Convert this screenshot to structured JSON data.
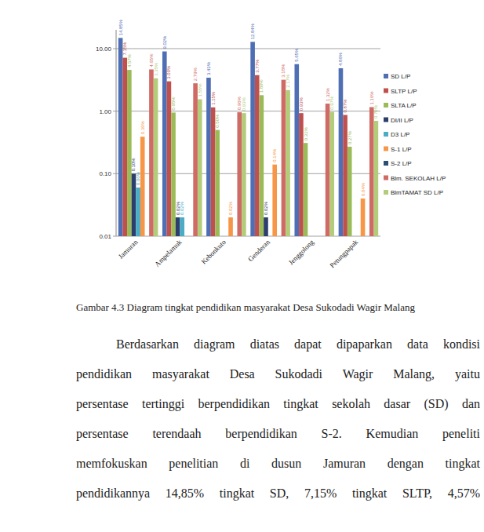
{
  "chart_data": {
    "type": "bar",
    "log": "y",
    "grid": true,
    "legend": "right",
    "data_labels": true,
    "categories": [
      "Jamuran",
      "Ampelamuk",
      "Kebonkuto",
      "Genderan",
      "Jenggolong",
      "Petungpapak"
    ],
    "ylim": [
      0.01,
      20
    ],
    "yticks": [
      {
        "value": 0.01,
        "label": "0.01"
      },
      {
        "value": 0.1,
        "label": "0.10"
      },
      {
        "value": 1,
        "label": "1.00"
      },
      {
        "value": 10,
        "label": "10.00"
      }
    ],
    "series": [
      {
        "name": "SD L/P",
        "color": "#4f6fb5",
        "values": [
          14.85,
          9.02,
          3.43,
          12.84,
          5.65,
          4.86
        ],
        "value_labels": [
          "14.85%",
          "9.02%",
          "3.43%",
          "12.84%",
          "5.65%",
          "4.86%"
        ]
      },
      {
        "name": "SLTP L/P",
        "color": "#c0504d",
        "values": [
          7.15,
          3.0,
          1.15,
          3.77,
          0.93,
          0.87
        ],
        "value_labels": [
          "7.15%",
          "3.00%",
          "1.15%",
          "3.77%",
          "0.93%",
          "0.87%"
        ]
      },
      {
        "name": "SLTA L/P",
        "color": "#9bbb59",
        "values": [
          4.57,
          0.95,
          0.5,
          1.8,
          0.31,
          0.27
        ],
        "value_labels": [
          "4.57%",
          "0.95%",
          "0.50%",
          "1.80%",
          "0.31%",
          "0.27%"
        ]
      },
      {
        "name": "DI/II L/P",
        "color": "#2c3e6b",
        "values": [
          0.1,
          0.02,
          null,
          0.02,
          null,
          null
        ],
        "value_labels": [
          "0.10%",
          "0.02%",
          null,
          "0.02%",
          null,
          null
        ]
      },
      {
        "name": "D3 L/P",
        "color": "#4bacc6",
        "values": [
          0.06,
          0.02,
          null,
          null,
          null,
          null
        ],
        "value_labels": [
          "0.06%",
          "0.02%",
          null,
          null,
          null,
          null
        ]
      },
      {
        "name": "S-1 L/P",
        "color": "#f79646",
        "values": [
          0.39,
          null,
          0.02,
          0.14,
          null,
          0.04
        ],
        "value_labels": [
          "0.39%",
          null,
          "0.02%",
          "0.14%",
          null,
          "0.04%"
        ]
      },
      {
        "name": "S-2 L/P",
        "color": "#2c4d75",
        "values": [
          null,
          null,
          null,
          null,
          null,
          null
        ],
        "value_labels": [
          null,
          null,
          null,
          null,
          null,
          null
        ]
      },
      {
        "name": "Blm. SEKOLAH L/P",
        "color": "#d06a66",
        "values": [
          4.65,
          2.79,
          0.96,
          3.18,
          1.32,
          1.16
        ],
        "value_labels": [
          "4.65%",
          "2.79%",
          "0.96%",
          "3.18%",
          "1.32%",
          "1.16%"
        ]
      },
      {
        "name": "BlmTAMAT SD L/P",
        "color": "#b3cc7a",
        "values": [
          3.35,
          1.55,
          0.93,
          2.17,
          0.97,
          0.7
        ],
        "value_labels": [
          "3.35%",
          "1.55%",
          "0.93%",
          "2.17%",
          "0.97%",
          "0.70%"
        ]
      }
    ]
  },
  "caption": "Gambar 4.3 Diagram tingkat pendidikan masyarakat Desa Sukodadi Wagir Malang",
  "body": [
    "Berdasarkan diagram diatas dapat dipaparkan data kondisi",
    "pendidikan masyarakat Desa Sukodadi Wagir Malang, yaitu",
    "persentase tertinggi berpendidikan tingkat sekolah dasar (SD) dan",
    "persentase terendaah berpendidikan S-2. Kemudian peneliti",
    "memfokuskan penelitian di dusun Jamuran dengan tingkat",
    "pendidikannya 14,85% tingkat SD, 7,15% tingkat SLTP, 4,57%"
  ]
}
